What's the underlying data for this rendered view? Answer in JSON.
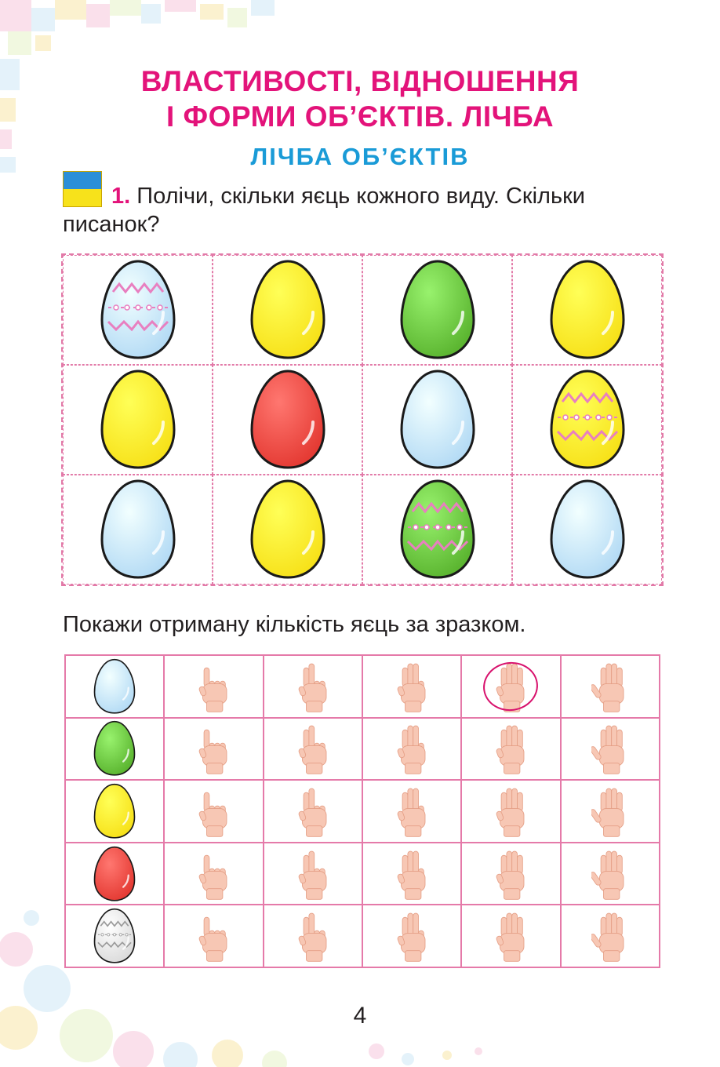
{
  "header": {
    "title_line1": "ВЛАСТИВОСТІ, ВІДНОШЕННЯ",
    "title_line2": "І ФОРМИ ОБ’ЄКТІВ. ЛІЧБА",
    "subtitle": "ЛІЧБА ОБ’ЄКТІВ"
  },
  "task": {
    "number": "1.",
    "text": "Полічи, скільки яєць кожного виду. Скільки писанок?"
  },
  "egg_grid": {
    "rows": [
      [
        {
          "color": "#b6dcf5",
          "pattern": true
        },
        {
          "color": "#f7e21b"
        },
        {
          "color": "#5cb631"
        },
        {
          "color": "#f7e21b"
        }
      ],
      [
        {
          "color": "#f7e21b"
        },
        {
          "color": "#e53b34"
        },
        {
          "color": "#b6dcf5"
        },
        {
          "color": "#f7e21b",
          "pattern": true
        }
      ],
      [
        {
          "color": "#b6dcf5"
        },
        {
          "color": "#f7e21b"
        },
        {
          "color": "#5cb631",
          "pattern": true
        },
        {
          "color": "#b6dcf5"
        }
      ]
    ]
  },
  "instruction": "Покажи отриману кількість яєць за зразком.",
  "count_table": {
    "hand_icons": [
      "one-finger-hand-icon",
      "two-fingers-hand-icon",
      "three-fingers-hand-icon",
      "four-fingers-hand-icon",
      "five-fingers-hand-icon"
    ],
    "rows": [
      {
        "egg_color": "#b6dcf5",
        "pattern": false,
        "circled_index": 3
      },
      {
        "egg_color": "#5cb631",
        "pattern": false,
        "circled_index": null
      },
      {
        "egg_color": "#f7e21b",
        "pattern": false,
        "circled_index": null
      },
      {
        "egg_color": "#e53b34",
        "pattern": false,
        "circled_index": null
      },
      {
        "egg_color": "#dcdcdc",
        "pattern": true,
        "circled_index": null
      }
    ]
  },
  "colors": {
    "title": "#e3137a",
    "subtitle": "#1a9bd7",
    "grid_border": "#e27aa8",
    "circle_mark": "#d8126d"
  },
  "page_number": "4"
}
